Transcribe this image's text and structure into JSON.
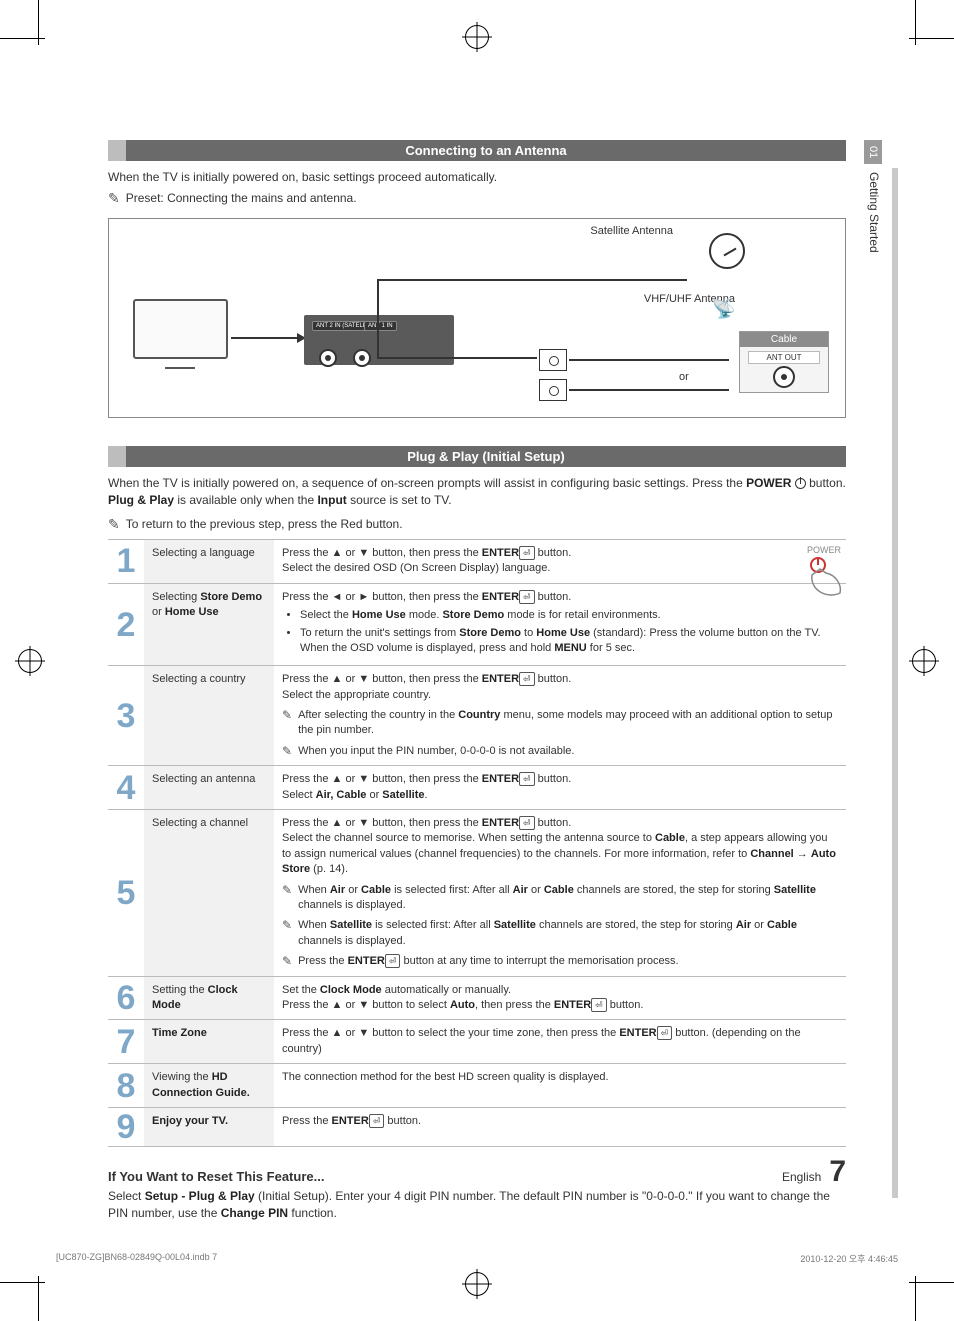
{
  "side_tab": {
    "num": "01",
    "label": "Getting Started"
  },
  "section1": {
    "title": "Connecting to an Antenna",
    "intro": "When the TV is initially powered on, basic settings proceed automatically.",
    "note": "Preset: Connecting the mains and antenna.",
    "diagram": {
      "sat_label": "Satellite Antenna",
      "vhf_label": "VHF/UHF Antenna",
      "or_label": "or",
      "cable_label": "Cable",
      "ant_out": "ANT OUT",
      "port1": "ANT 2 IN (SATELLITE)",
      "port2": "ANT 1 IN"
    }
  },
  "section2": {
    "title": "Plug & Play (Initial Setup)",
    "intro_a": "When the TV is initially powered on, a sequence of on-screen prompts will assist in configuring basic settings. Press the ",
    "intro_b": " button. ",
    "intro_c": " is available only when the ",
    "intro_d": " source is set to TV.",
    "power_word": "POWER",
    "plugplay_word": "Plug & Play",
    "input_word": "Input",
    "note": "To return to the previous step, press the Red button.",
    "hand_label": "POWER"
  },
  "steps": [
    {
      "n": "1",
      "label": "Selecting a language",
      "desc_html": "Press the <span class='arrow-sym'>▲</span> or <span class='arrow-sym'>▼</span> button, then press the <b>ENTER</b><span class='enter-icon'>⏎</span> button.<br>Select the desired OSD (On Screen Display) language."
    },
    {
      "n": "2",
      "label_html": "Selecting <b>Store Demo</b> or <b>Home Use</b>",
      "desc_html": "Press the <span class='arrow-sym'>◄</span> or <span class='arrow-sym'>►</span> button, then press the <b>ENTER</b><span class='enter-icon'>⏎</span> button.<ul class='bullets'><li>Select the <b>Home Use</b> mode. <b>Store Demo</b> mode is for retail environments.</li><li>To return the unit's settings from <b>Store Demo</b> to <b>Home Use</b> (standard): Press the volume button on the TV. When the OSD volume is displayed, press and hold <b>MENU</b> for 5 sec.</li></ul>"
    },
    {
      "n": "3",
      "label": "Selecting a country",
      "desc_html": "Press the <span class='arrow-sym'>▲</span> or <span class='arrow-sym'>▼</span> button, then press the <b>ENTER</b><span class='enter-icon'>⏎</span> button.<br>Select the appropriate country.",
      "notes": [
        "After selecting the country in the <b>Country</b> menu, some models may proceed with an additional option to setup the pin number.",
        "When you input the PIN number, 0-0-0-0 is not available."
      ]
    },
    {
      "n": "4",
      "label": "Selecting an antenna",
      "desc_html": "Press the <span class='arrow-sym'>▲</span> or <span class='arrow-sym'>▼</span> button, then press the <b>ENTER</b><span class='enter-icon'>⏎</span> button.<br>Select <b>Air, Cable</b> or <b>Satellite</b>."
    },
    {
      "n": "5",
      "label": "Selecting a channel",
      "desc_html": "Press the <span class='arrow-sym'>▲</span> or <span class='arrow-sym'>▼</span> button, then press the <b>ENTER</b><span class='enter-icon'>⏎</span> button.<br>Select the channel source to memorise. When setting the antenna source to <b>Cable</b>, a step appears allowing you to assign numerical values (channel frequencies) to the channels. For more information, refer to <b>Channel</b> → <b>Auto Store</b> (p. 14).",
      "notes": [
        "When <b>Air</b> or <b>Cable</b> is selected first: After all <b>Air</b> or <b>Cable</b> channels are stored, the step for storing <b>Satellite</b> channels is displayed.",
        "When <b>Satellite</b> is selected first: After all <b>Satellite</b> channels are stored, the step for storing <b>Air</b> or <b>Cable</b> channels is displayed.",
        "Press the <b>ENTER</b><span class='enter-icon'>⏎</span> button at any time to interrupt the memorisation process."
      ]
    },
    {
      "n": "6",
      "label_html": "Setting the <b>Clock Mode</b>",
      "desc_html": "Set the <b>Clock Mode</b> automatically or manually.<br>Press the <span class='arrow-sym'>▲</span> or <span class='arrow-sym'>▼</span> button to select <b>Auto</b>, then press the <b>ENTER</b><span class='enter-icon'>⏎</span> button."
    },
    {
      "n": "7",
      "label_html": "<b>Time Zone</b>",
      "desc_html": "Press the <span class='arrow-sym'>▲</span> or <span class='arrow-sym'>▼</span> button to select the your time zone, then press the <b>ENTER</b><span class='enter-icon'>⏎</span> button. (depending on the country)"
    },
    {
      "n": "8",
      "label_html": "Viewing the <b>HD Connection Guide.</b>",
      "desc_html": "The connection method for the best HD screen quality is displayed."
    },
    {
      "n": "9",
      "label_html": "<b>Enjoy your TV.</b>",
      "desc_html": "Press the <b>ENTER</b><span class='enter-icon'>⏎</span> button."
    }
  ],
  "reset": {
    "heading": "If You Want to Reset This Feature...",
    "body_a": "Select ",
    "body_b": " (Initial Setup). Enter your 4 digit PIN number. The default PIN number is \"0-0-0-0.\" If you want to change the PIN number, use the ",
    "body_c": " function.",
    "setup_word": "Setup - Plug & Play",
    "change_pin_word": "Change PIN"
  },
  "footer": {
    "lang": "English",
    "page": "7"
  },
  "printline": {
    "left": "[UC870-ZG]BN68-02849Q-00L04.indb   7",
    "right": "2010-12-20   오후 4:46:45"
  }
}
